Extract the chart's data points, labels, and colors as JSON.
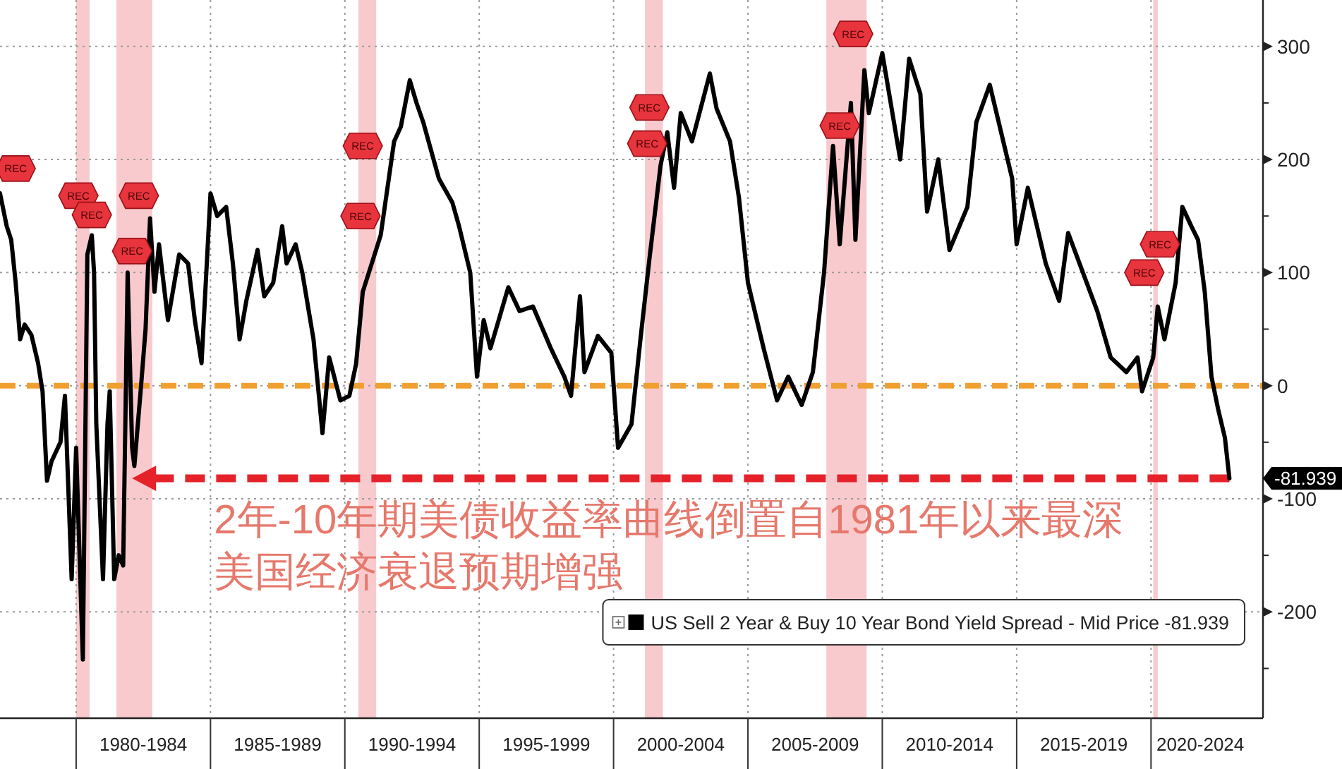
{
  "chart_data": {
    "type": "line",
    "x": [
      "1977-03",
      "1977-06",
      "1977-08",
      "1977-10",
      "1977-12",
      "1978-02",
      "1978-05",
      "1978-08",
      "1978-10",
      "1978-12",
      "1979-02",
      "1979-06",
      "1979-08",
      "1979-11",
      "1980-01",
      "1980-04",
      "1980-06",
      "1980-08",
      "1980-09",
      "1980-10",
      "1981-01",
      "1981-03",
      "1981-04",
      "1981-06",
      "1981-08",
      "1981-10",
      "1981-12",
      "1982-02",
      "1982-03",
      "1982-06",
      "1982-08",
      "1982-10",
      "1982-12",
      "1983-02",
      "1983-06",
      "1983-11",
      "1984-03",
      "1984-06",
      "1984-09",
      "1985-01",
      "1985-04",
      "1985-08",
      "1985-11",
      "1986-02",
      "1986-05",
      "1986-10",
      "1987-01",
      "1987-05",
      "1987-09",
      "1987-11",
      "1988-03",
      "1988-06",
      "1988-11",
      "1989-03",
      "1989-06",
      "1989-11",
      "1990-03",
      "1990-06",
      "1990-09",
      "1991-01",
      "1991-05",
      "1991-11",
      "1992-02",
      "1992-06",
      "1992-09",
      "1992-12",
      "1993-07",
      "1994-01",
      "1994-04",
      "1994-09",
      "1994-12",
      "1995-03",
      "1995-06",
      "1996-02",
      "1996-07",
      "1997-01",
      "1997-09",
      "1998-03",
      "1998-06",
      "1998-10",
      "1998-12",
      "1999-06",
      "1999-12",
      "2000-03",
      "2000-09",
      "2001-01",
      "2001-05",
      "2001-10",
      "2002-01",
      "2002-04",
      "2002-07",
      "2002-12",
      "2003-08",
      "2003-11",
      "2004-05",
      "2004-09",
      "2005-01",
      "2005-08",
      "2006-02",
      "2006-07",
      "2007-01",
      "2007-06",
      "2007-11",
      "2008-03",
      "2008-06",
      "2008-11",
      "2009-01",
      "2009-05",
      "2009-07",
      "2010-01",
      "2010-09",
      "2011-01",
      "2011-06",
      "2011-09",
      "2012-02",
      "2012-07",
      "2013-03",
      "2013-07",
      "2014-01",
      "2014-11",
      "2015-01",
      "2015-06",
      "2016-02",
      "2016-08",
      "2016-12",
      "2018-01",
      "2018-07",
      "2019-02",
      "2019-07",
      "2019-09",
      "2020-02",
      "2020-04",
      "2020-07",
      "2020-12",
      "2021-03",
      "2021-07",
      "2021-10",
      "2022-01",
      "2022-04",
      "2022-07",
      "2022-10",
      "2022-12"
    ],
    "series": [
      {
        "name": "US Sell 2 Year & Buy 10 Year Bond Yield Spread - Mid Price -81.939",
        "color": "#000000",
        "values": [
          170,
          141,
          129,
          91,
          41,
          54,
          45,
          20,
          -5,
          -84,
          -67,
          -50,
          -9,
          -171,
          -55,
          -242,
          116,
          133,
          100,
          -34,
          -171,
          -34,
          -5,
          -171,
          -150,
          -159,
          100,
          -55,
          -71,
          0,
          50,
          148,
          83,
          125,
          58,
          116,
          108,
          58,
          20,
          170,
          150,
          158,
          108,
          41,
          75,
          120,
          79,
          91,
          141,
          108,
          125,
          100,
          41,
          -42,
          25,
          -13,
          -9,
          19,
          83,
          108,
          133,
          216,
          229,
          270,
          250,
          233,
          183,
          162,
          141,
          100,
          8,
          58,
          33,
          87,
          66,
          70,
          33,
          8,
          -9,
          79,
          12,
          44,
          29,
          -55,
          -34,
          41,
          112,
          195,
          224,
          175,
          241,
          216,
          276,
          245,
          216,
          166,
          91,
          33,
          -13,
          8,
          -17,
          12,
          100,
          212,
          125,
          250,
          129,
          279,
          241,
          294,
          200,
          289,
          258,
          154,
          200,
          120,
          158,
          233,
          266,
          183,
          125,
          175,
          108,
          75,
          135,
          66,
          25,
          12,
          25,
          -5,
          25,
          70,
          41,
          91,
          158,
          141,
          129,
          83,
          8,
          -21,
          -46,
          -81.939
        ]
      }
    ],
    "xlim": [
      "1977-03",
      "2024-03"
    ],
    "xticks": [
      {
        "value": "1980",
        "label": null
      },
      {
        "value": "1982-07",
        "label": "1980-1984"
      },
      {
        "value": "1985",
        "label": null
      },
      {
        "value": "1987-07",
        "label": "1985-1989"
      },
      {
        "value": "1990",
        "label": null
      },
      {
        "value": "1992-07",
        "label": "1990-1994"
      },
      {
        "value": "1995",
        "label": null
      },
      {
        "value": "1997-07",
        "label": "1995-1999"
      },
      {
        "value": "2000",
        "label": null
      },
      {
        "value": "2002-07",
        "label": "2000-2004"
      },
      {
        "value": "2005",
        "label": null
      },
      {
        "value": "2007-07",
        "label": "2005-2009"
      },
      {
        "value": "2010",
        "label": null
      },
      {
        "value": "2012-07",
        "label": "2010-2014"
      },
      {
        "value": "2015",
        "label": null
      },
      {
        "value": "2017-07",
        "label": "2015-2019"
      },
      {
        "value": "2020",
        "label": null
      },
      {
        "value": "2021-11",
        "label": "2020-2024"
      }
    ],
    "ylim": [
      -294,
      341
    ],
    "yticks": [
      {
        "value": -250,
        "label": null
      },
      -200,
      {
        "value": -150,
        "label": null
      },
      -100,
      {
        "value": -50,
        "label": null
      },
      0,
      {
        "value": 50,
        "label": null
      },
      100,
      {
        "value": 150,
        "label": null
      },
      200,
      {
        "value": 250,
        "label": null
      },
      300
    ],
    "grid": true,
    "legend": "bottom right",
    "ref_lines": [
      {
        "axis": "y",
        "value": 0,
        "color": "#f0a030",
        "line_style": "dashed"
      },
      {
        "axis": "y",
        "value": -81.939,
        "label": "-81.939",
        "color": "#e5222a",
        "line_style": "dashed"
      }
    ],
    "bands": [
      {
        "axis": "x",
        "from": "1980-01",
        "to": "1980-07",
        "color": "#f8c4c8"
      },
      {
        "axis": "x",
        "from": "1981-07",
        "to": "1982-11",
        "color": "#f8c4c8"
      },
      {
        "axis": "x",
        "from": "1990-07",
        "to": "1991-03",
        "color": "#f8c4c8"
      },
      {
        "axis": "x",
        "from": "2001-03",
        "to": "2001-11",
        "color": "#f8c4c8"
      },
      {
        "axis": "x",
        "from": "2007-12",
        "to": "2009-06",
        "color": "#f8c4c8"
      },
      {
        "axis": "x",
        "from": "2020-02",
        "to": "2020-04",
        "color": "#f8c4c8"
      }
    ],
    "annotations": [
      {
        "text": "2年-10年期美债收益率曲线倒置自1981年以来最深",
        "x": "1982-02",
        "y": -81.939
      },
      "美国经济衰退预期增强",
      {
        "text": "REC",
        "x": "1977-10",
        "y": 192
      },
      {
        "text": "REC",
        "x": "1980-02",
        "y": 168
      },
      {
        "text": "REC",
        "x": "1980-08",
        "y": 151
      },
      {
        "text": "REC",
        "x": "1982-05",
        "y": 168
      },
      {
        "text": "REC",
        "x": "1982-02",
        "y": 119
      },
      {
        "text": "REC",
        "x": "1990-09",
        "y": 212
      },
      {
        "text": "REC",
        "x": "1990-08",
        "y": 150
      },
      {
        "text": "REC",
        "x": "2001-05",
        "y": 246
      },
      {
        "text": "REC",
        "x": "2001-04",
        "y": 214
      },
      {
        "text": "REC",
        "x": "2008-12",
        "y": 311
      },
      {
        "text": "REC",
        "x": "2008-06",
        "y": 230
      },
      {
        "text": "REC",
        "x": "2019-10",
        "y": 100
      },
      {
        "text": "REC",
        "x": "2020-05",
        "y": 125
      }
    ]
  }
}
